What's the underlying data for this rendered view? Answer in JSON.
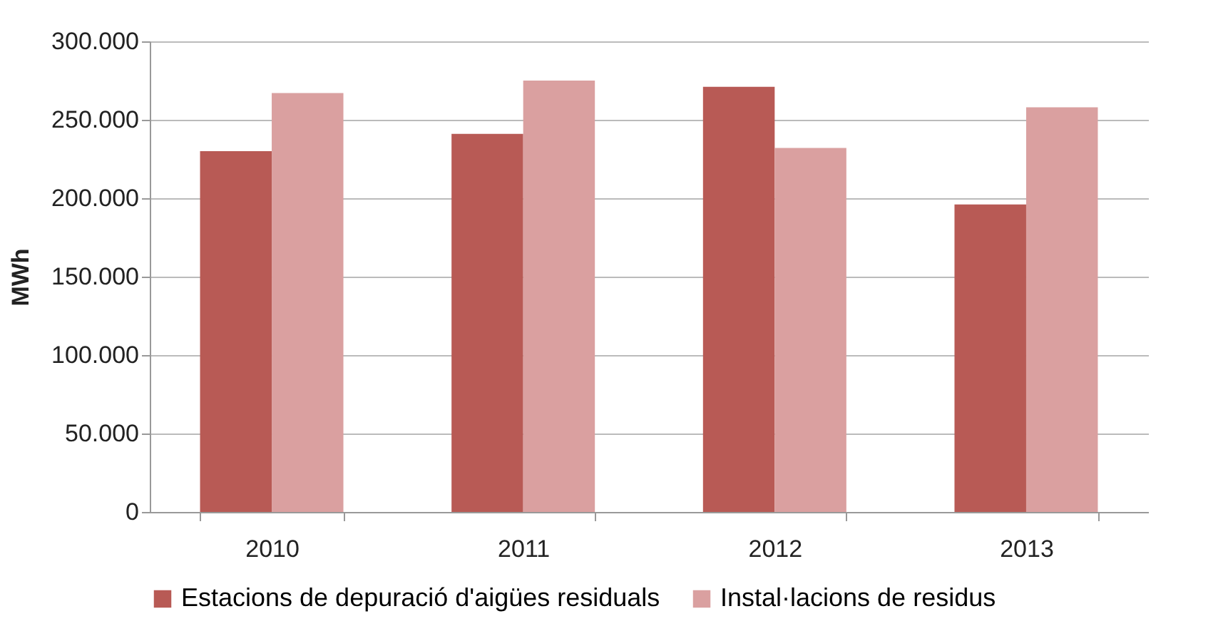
{
  "chart_data": {
    "type": "bar",
    "ylabel": "MWh",
    "categories": [
      "2010",
      "2011",
      "2012",
      "2013"
    ],
    "series": [
      {
        "name": "Estacions de depuració d'aigües residuals",
        "color": "#b85a55",
        "values": [
          230000,
          241000,
          271000,
          196000
        ]
      },
      {
        "name": "Instal·lacions de residus",
        "color": "#daa0a0",
        "values": [
          267000,
          275000,
          232000,
          258000
        ]
      }
    ],
    "ylim": [
      0,
      300000
    ],
    "yticks": [
      {
        "value": 0,
        "label": "0"
      },
      {
        "value": 50000,
        "label": "50.000"
      },
      {
        "value": 100000,
        "label": "100.000"
      },
      {
        "value": 150000,
        "label": "150.000"
      },
      {
        "value": 200000,
        "label": "200.000"
      },
      {
        "value": 250000,
        "label": "250.000"
      },
      {
        "value": 300000,
        "label": "300.000"
      }
    ],
    "grid": "y",
    "legend": "bottom"
  }
}
